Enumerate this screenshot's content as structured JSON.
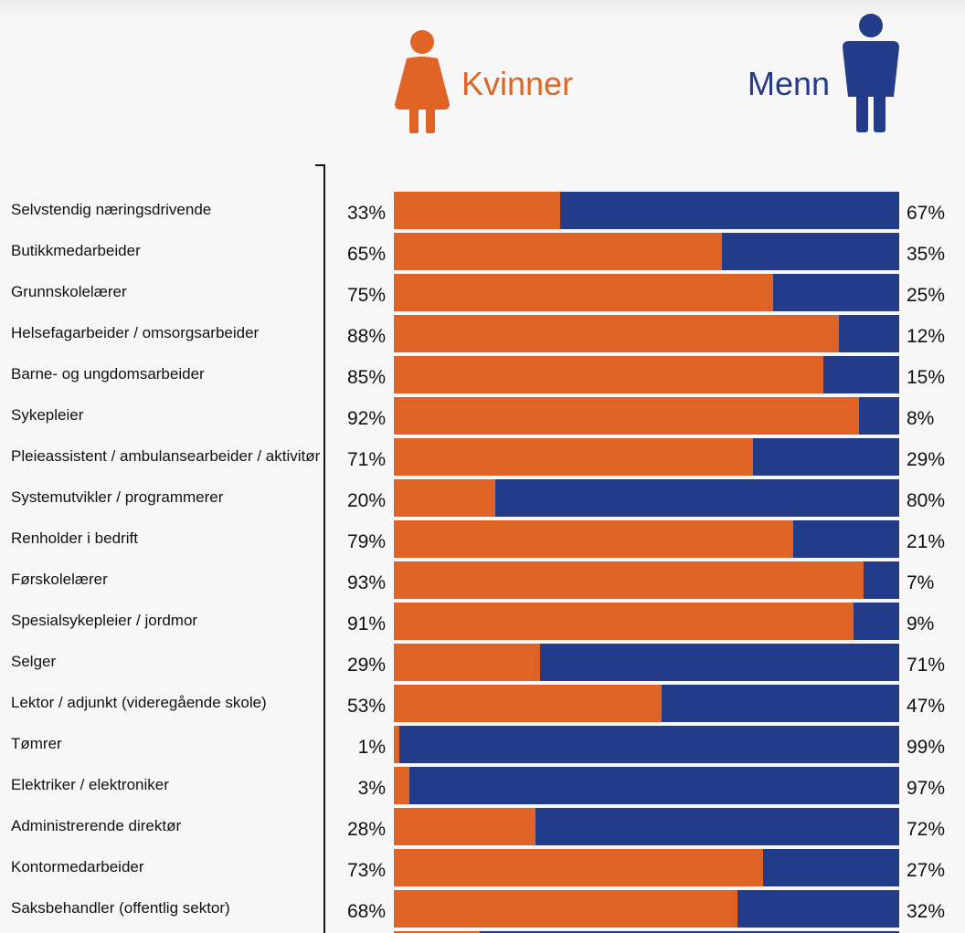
{
  "legend": {
    "women_label": "Kvinner",
    "men_label": "Menn",
    "women_icon": "woman-icon",
    "men_icon": "man-icon",
    "women_color": "#de6325",
    "men_color": "#233c8a"
  },
  "chart_data": {
    "type": "bar",
    "orientation": "horizontal",
    "stacked": true,
    "normalized_to": 100,
    "xlim": [
      0,
      100
    ],
    "categories": [
      "Selvstendig næringsdrivende",
      "Butikkmedarbeider",
      "Grunnskolelærer",
      "Helsefagarbeider / omsorgsarbeider",
      "Barne- og ungdomsarbeider",
      "Sykepleier",
      "Pleieassistent / ambulansearbeider / aktivitør",
      "Systemutvikler / programmerer",
      "Renholder i bedrift",
      "Førskolelærer",
      "Spesialsykepleier / jordmor",
      "Selger",
      "Lektor / adjunkt (videregående skole)",
      "Tømrer",
      "Elektriker / elektroniker",
      "Administrerende direktør",
      "Kontormedarbeider",
      "Saksbehandler (offentlig sektor)"
    ],
    "series": [
      {
        "name": "Kvinner",
        "color": "#de6325",
        "values": [
          33,
          65,
          75,
          88,
          85,
          92,
          71,
          20,
          79,
          93,
          91,
          29,
          53,
          1,
          3,
          28,
          73,
          68
        ],
        "labels": [
          "33%",
          "65%",
          "75%",
          "88%",
          "85%",
          "92%",
          "71%",
          "20%",
          "79%",
          "93%",
          "91%",
          "29%",
          "53%",
          "1%",
          "3%",
          "28%",
          "73%",
          "68%"
        ]
      },
      {
        "name": "Menn",
        "color": "#233c8a",
        "values": [
          67,
          35,
          25,
          12,
          15,
          8,
          29,
          80,
          21,
          7,
          9,
          71,
          47,
          99,
          97,
          72,
          27,
          32
        ],
        "labels": [
          "67%",
          "35%",
          "25%",
          "12%",
          "15%",
          "8%",
          "29%",
          "80%",
          "21%",
          "7%",
          "9%",
          "71%",
          "47%",
          "99%",
          "97%",
          "72%",
          "27%",
          "32%"
        ]
      }
    ],
    "partial_next_row": {
      "women_value": 17,
      "men_value": 83
    }
  }
}
